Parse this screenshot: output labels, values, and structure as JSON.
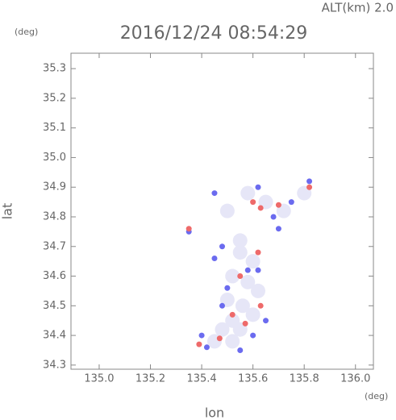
{
  "chart_data": {
    "type": "scatter",
    "title": "2016/12/24 08:54:29",
    "subtitle": "ALT(km) 2.0",
    "x_label": "lon",
    "y_label": "lat",
    "x_unit": "(deg)",
    "y_unit": "(deg)",
    "xlim": [
      134.89,
      136.07
    ],
    "ylim": [
      34.286,
      35.352
    ],
    "xticks": [
      {
        "value": 135,
        "label": "135.0"
      },
      135.2,
      135.4,
      135.6,
      135.8,
      {
        "value": 136,
        "label": "136.0"
      }
    ],
    "yticks": [
      34.3,
      34.4,
      34.5,
      34.6,
      34.7,
      34.8,
      34.9,
      {
        "value": 35,
        "label": "35.0"
      },
      35.1,
      35.2,
      35.3
    ],
    "series": [
      {
        "color": "#e6e6f7",
        "x": [
          135.55,
          135.6,
          135.52,
          135.58,
          135.62,
          135.5,
          135.56,
          135.6,
          135.52,
          135.48,
          135.55,
          135.45,
          135.52,
          135.55,
          135.65,
          135.72,
          135.58,
          135.8,
          135.5
        ],
        "y": [
          34.68,
          34.65,
          34.6,
          34.58,
          34.55,
          34.52,
          34.5,
          34.47,
          34.45,
          34.42,
          34.42,
          34.38,
          34.38,
          34.72,
          34.85,
          34.82,
          34.88,
          34.88,
          34.82
        ]
      },
      {
        "color": "#6b6bef",
        "x": [
          135.45,
          135.48,
          135.62,
          135.65,
          135.42,
          135.4,
          135.55,
          135.6,
          135.48,
          135.68,
          135.75,
          135.82,
          135.45,
          135.7,
          135.35,
          135.62,
          135.5,
          135.58
        ],
        "y": [
          34.66,
          34.7,
          34.62,
          34.45,
          34.36,
          34.4,
          34.35,
          34.4,
          34.5,
          34.8,
          34.85,
          34.92,
          34.88,
          34.76,
          34.75,
          34.9,
          34.56,
          34.62
        ]
      },
      {
        "color": "#ee6a6a",
        "x": [
          135.39,
          135.6,
          135.63,
          135.82,
          135.55,
          135.63,
          135.57,
          135.47,
          135.35,
          135.62,
          135.7,
          135.52
        ],
        "y": [
          34.37,
          34.85,
          34.83,
          34.9,
          34.6,
          34.5,
          34.44,
          34.39,
          34.76,
          34.68,
          34.84,
          34.47
        ]
      }
    ]
  }
}
